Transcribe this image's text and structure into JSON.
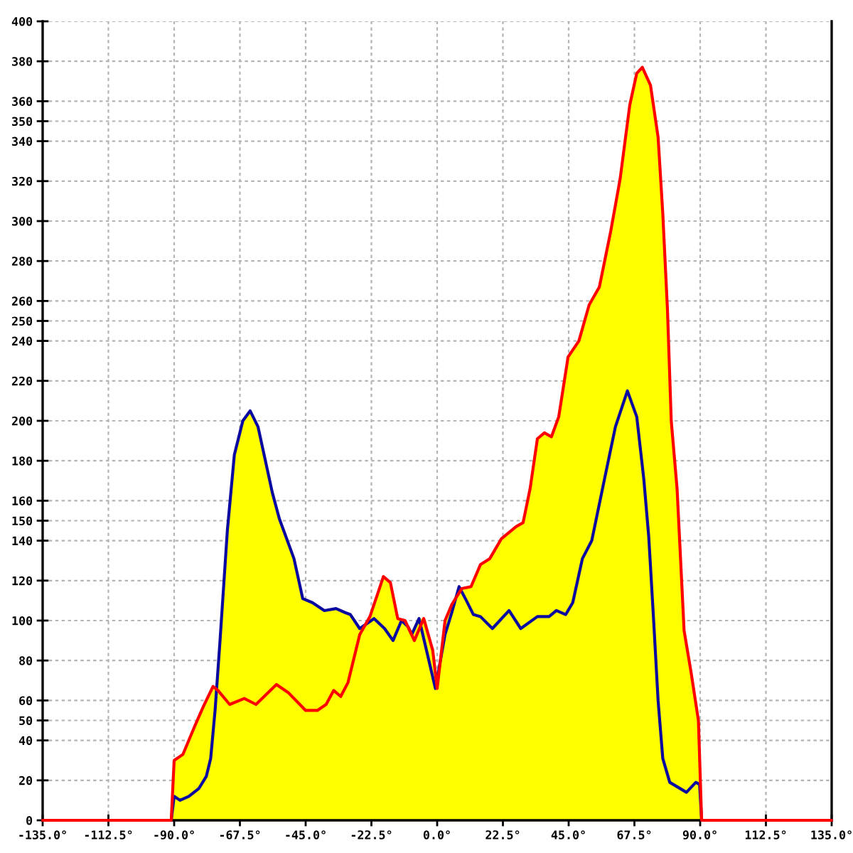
{
  "chart_data": {
    "type": "area",
    "xlim": [
      -135,
      135
    ],
    "xticks": [
      {
        "value": -135,
        "label": "-135.0°"
      },
      {
        "value": -112.5,
        "label": "-112.5°"
      },
      {
        "value": -90,
        "label": "-90.0°"
      },
      {
        "value": -67.5,
        "label": "-67.5°"
      },
      {
        "value": -45,
        "label": "-45.0°"
      },
      {
        "value": -22.5,
        "label": "-22.5°"
      },
      {
        "value": 0,
        "label": "0.0°"
      },
      {
        "value": 22.5,
        "label": "22.5°"
      },
      {
        "value": 45,
        "label": "45.0°"
      },
      {
        "value": 67.5,
        "label": "67.5°"
      },
      {
        "value": 90,
        "label": "90.0°"
      },
      {
        "value": 112.5,
        "label": "112.5°"
      },
      {
        "value": 135,
        "label": "135.0°"
      }
    ],
    "ylim": [
      0,
      400
    ],
    "yticks": [
      0,
      20,
      40,
      50,
      60,
      80,
      100,
      120,
      140,
      150,
      160,
      180,
      200,
      220,
      240,
      250,
      260,
      280,
      300,
      320,
      340,
      350,
      360,
      380,
      400
    ],
    "grid": true,
    "series": [
      {
        "color": "#ffff00",
        "x": [
          -91,
          -90,
          -87,
          -83,
          -80,
          -76.7,
          -75.3,
          -74.3,
          -71.8,
          -69.4,
          -66.5,
          -64,
          -61.3,
          -56.4,
          -54,
          -49,
          -46,
          -42.7,
          -38.6,
          -34.6,
          -31.5,
          -29.7,
          -26.5,
          -25,
          -23,
          -20,
          -18.4,
          -16,
          -13.5,
          -12.2,
          -11,
          -8.7,
          -7.8,
          -6.2,
          -4.6,
          -3.8,
          -1.5,
          0,
          2.7,
          5,
          8.4,
          11.6,
          14.8,
          18,
          22,
          27,
          29.4,
          31.8,
          34.3,
          36.7,
          39.1,
          41.6,
          44.8,
          48.5,
          52,
          55.5,
          59.4,
          62.6,
          65.9,
          68.3,
          70.2,
          73,
          75.6,
          77.2,
          78.8,
          80.1,
          82.1,
          84.5,
          86.9,
          89.4,
          90.5
        ],
        "values": [
          0,
          30,
          33,
          47,
          57,
          67,
          66,
          90,
          145,
          183,
          200,
          205,
          197,
          164,
          151,
          131,
          111,
          109,
          105,
          106,
          104,
          103,
          96,
          97,
          102,
          115,
          122,
          119,
          101,
          100,
          100,
          93,
          96,
          101,
          101,
          100,
          85,
          66,
          100,
          108,
          116,
          117,
          128,
          131,
          141,
          147,
          149,
          166,
          191,
          194,
          192,
          202,
          232,
          240,
          258,
          267,
          295,
          321,
          358,
          374,
          377,
          368,
          342,
          304,
          256,
          200,
          166,
          95,
          74,
          50,
          0
        ]
      },
      {
        "type": "line",
        "color": "#0a0aa0",
        "x": [
          -135,
          -91,
          -90,
          -88,
          -85,
          -81.5,
          -79,
          -77.5,
          -76,
          -74.3,
          -71.8,
          -69.4,
          -66.5,
          -64,
          -61.3,
          -56.4,
          -54,
          -49,
          -46,
          -42.7,
          -38.6,
          -34.6,
          -31.5,
          -29.7,
          -26.5,
          -21.6,
          -18,
          -15.1,
          -12.2,
          -10,
          -8.7,
          -6.2,
          -3.8,
          -0.6,
          2.7,
          5,
          7.5,
          10,
          12.4,
          14.8,
          18.9,
          24.6,
          28.6,
          34.3,
          38.3,
          40.8,
          44,
          46.4,
          49.7,
          52.9,
          57,
          61,
          65.1,
          68.3,
          70.7,
          72.4,
          74,
          75.6,
          77.2,
          79.6,
          85.3,
          88.5,
          89.8,
          90.5,
          135
        ],
        "values": [
          0,
          0,
          12,
          10,
          12,
          16,
          22,
          31,
          55,
          90,
          145,
          183,
          200,
          205,
          197,
          164,
          151,
          131,
          111,
          109,
          105,
          106,
          104,
          103,
          96,
          101,
          96,
          90,
          100,
          97,
          93,
          101,
          86,
          66,
          93,
          104,
          117,
          110,
          103,
          102,
          96,
          105,
          96,
          102,
          102,
          105,
          103,
          109,
          131,
          140,
          169,
          197,
          215,
          202,
          171,
          142,
          102,
          60,
          31,
          19,
          14,
          19,
          18,
          0,
          0
        ]
      },
      {
        "type": "line",
        "color": "#ff0000",
        "x": [
          -135,
          -91,
          -90,
          -87,
          -83,
          -80,
          -76.7,
          -75,
          -71,
          -66,
          -62,
          -55,
          -51,
          -45,
          -41,
          -38,
          -35.4,
          -33,
          -30.5,
          -26.5,
          -23,
          -20,
          -18.4,
          -16,
          -13.5,
          -11,
          -7.8,
          -4.6,
          -1.5,
          0,
          2.7,
          5,
          8.4,
          11.6,
          14.8,
          18,
          22,
          27,
          29.4,
          31.8,
          34.3,
          36.7,
          39.1,
          41.6,
          44.8,
          48.5,
          52,
          55.5,
          59.4,
          62.6,
          65.9,
          68.3,
          70.2,
          73,
          75.6,
          77.2,
          78.8,
          80.1,
          82.1,
          84.5,
          86.9,
          89.4,
          90.5,
          135
        ],
        "values": [
          0,
          0,
          30,
          33,
          47,
          57,
          67,
          65,
          58,
          61,
          58,
          68,
          64,
          55,
          55,
          58,
          65,
          62,
          69,
          93,
          102,
          115,
          122,
          119,
          101,
          100,
          90,
          101,
          85,
          66,
          100,
          108,
          116,
          117,
          128,
          131,
          141,
          147,
          149,
          166,
          191,
          194,
          192,
          202,
          232,
          240,
          258,
          267,
          295,
          321,
          358,
          374,
          377,
          368,
          342,
          304,
          256,
          200,
          166,
          95,
          74,
          50,
          0,
          0
        ]
      }
    ]
  }
}
